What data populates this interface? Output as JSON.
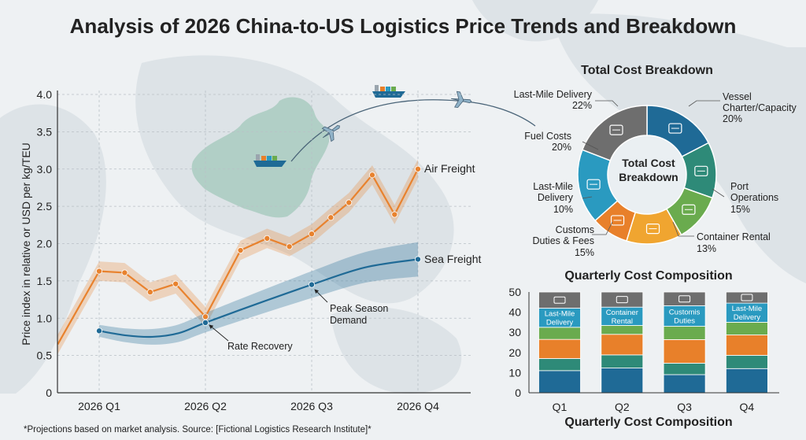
{
  "title": "Analysis of 2026 China-to-US Logistics Price Trends and Breakdown",
  "footnote": "*Projections based on market analysis. Source: [Fictional Logistics Research Institute]*",
  "chart_data": [
    {
      "type": "line",
      "title": "",
      "xlabel": "",
      "ylabel": "Price index in relative or USD per kg/TEU",
      "x_ticks": [
        "2026 Q1",
        "2026 Q2",
        "2026 Q3",
        "2026 Q4"
      ],
      "y_ticks": [
        "0",
        "0.5",
        "1.0",
        "1.5",
        "2.0",
        "2.5",
        "3.0",
        "3.5",
        "4.0"
      ],
      "ylim": [
        0,
        4.0
      ],
      "grid": true,
      "series": [
        {
          "name": "Air Freight",
          "color": "#e8822e",
          "x": [
            0.61,
            1,
            1.24,
            1.48,
            1.72,
            2.0,
            2.33,
            2.58,
            2.79,
            3.0,
            3.18,
            3.35,
            3.57,
            3.78,
            4.0
          ],
          "y": [
            0.65,
            1.63,
            1.61,
            1.35,
            1.46,
            1.02,
            1.91,
            2.07,
            1.96,
            2.13,
            2.35,
            2.55,
            2.92,
            2.39,
            3.0
          ]
        },
        {
          "name": "Sea Freight",
          "color": "#1f6a96",
          "x": [
            1,
            1.25,
            1.5,
            1.75,
            2,
            2.5,
            3,
            3.5,
            4
          ],
          "y": [
            0.83,
            0.77,
            0.75,
            0.8,
            0.94,
            1.2,
            1.45,
            1.68,
            1.79
          ],
          "markers_at": [
            1,
            2,
            3,
            4
          ]
        }
      ],
      "annotations": [
        {
          "text": "Rate Recovery",
          "x": 2,
          "y": 0.94
        },
        {
          "text": "Peak Season Demand",
          "lines": [
            "Peak Season",
            "Demand"
          ],
          "x": 3,
          "y": 1.45
        }
      ]
    },
    {
      "type": "pie",
      "title": "Total Cost Breakdown",
      "center_label": [
        "Total Cost",
        "Breakdown"
      ],
      "slices": [
        {
          "label": [
            "Vessel",
            "Charter/Capacity"
          ],
          "value": 20,
          "pct": "20%",
          "color": "#1f6a96",
          "icon": "ship-icon"
        },
        {
          "label": [
            "Port",
            "Operations"
          ],
          "value": 15,
          "pct": "15%",
          "color": "#2e8a78",
          "icon": "crane-icon"
        },
        {
          "label": [
            "Container Rental"
          ],
          "value": 13,
          "pct": "13%",
          "color": "#6aab4e",
          "icon": "container-icon"
        },
        {
          "label": [
            "Customs",
            "Duties & Fees"
          ],
          "value": 15,
          "pct": "15%",
          "color": "#f0a530",
          "icon": "money-hand-icon"
        },
        {
          "label": [
            "Last-Mile",
            "Delivery"
          ],
          "value": 10,
          "pct": "10%",
          "color": "#e8802a",
          "icon": "barcode-icon"
        },
        {
          "label": [
            "Fuel Costs"
          ],
          "value": 20,
          "pct": "20%",
          "color": "#2a9ac0",
          "icon": "fuel-pump-icon"
        },
        {
          "label": [
            "Last-Mile Delivery"
          ],
          "value": 22,
          "pct": "22%",
          "color": "#6e6e6e",
          "icon": "truck-icon"
        }
      ]
    },
    {
      "type": "bar",
      "stacked": true,
      "title": "Quarterly Cost Composition",
      "xlabel": "Quarterly Cost Composition",
      "categories": [
        "Q1",
        "Q2",
        "Q3",
        "Q4"
      ],
      "y_ticks": [
        "0",
        "10",
        "20",
        "30",
        "40",
        "50"
      ],
      "ylim": [
        0,
        50
      ],
      "series": [
        {
          "color": "#1f6a96",
          "values": [
            11,
            12.3,
            9,
            12
          ]
        },
        {
          "color": "#2e8a78",
          "values": [
            6,
            6.5,
            5.7,
            6.6
          ]
        },
        {
          "color": "#e8802a",
          "values": [
            9.5,
            10.2,
            11.7,
            10.1
          ]
        },
        {
          "color": "#6aab4e",
          "values": [
            6,
            4.4,
            6.6,
            6.3
          ]
        },
        {
          "color": "#2a9ac0",
          "values": [
            9.5,
            9.1,
            10.2,
            9.5
          ],
          "segment_labels": [
            [
              "Last-Mile",
              "Delivery"
            ],
            [
              "Container",
              "Rental"
            ],
            [
              "Customis",
              "Duties"
            ],
            [
              "Last-Mile",
              "Delivery"
            ]
          ]
        },
        {
          "color": "#6e6e6e",
          "values": [
            8,
            7.5,
            6.8,
            5.5
          ],
          "segment_icons": [
            "truck-icon",
            "money-hand-icon",
            "barcode-icon",
            "truck-icon"
          ]
        }
      ]
    }
  ]
}
